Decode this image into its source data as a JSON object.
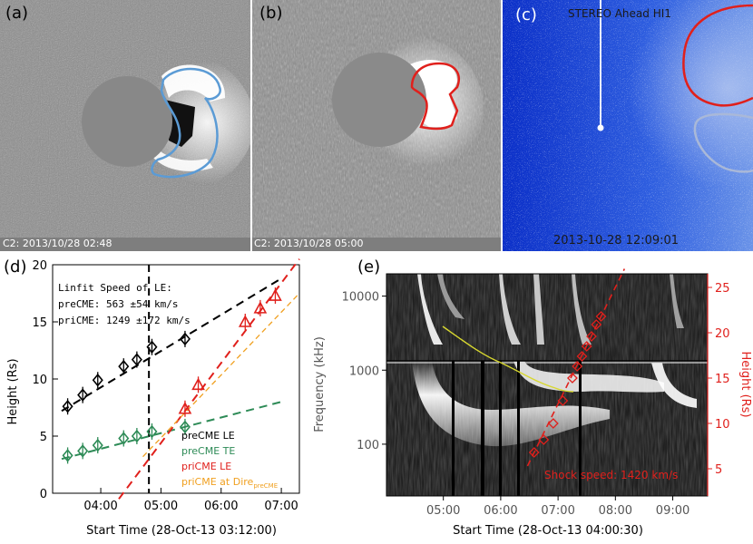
{
  "panel_a": {
    "letter": "(a)",
    "caption": "C2: 2013/10/28 02:48"
  },
  "panel_b": {
    "letter": "(b)",
    "caption": "C2: 2013/10/28 05:00"
  },
  "panel_c": {
    "letter": "(c)",
    "instrument": "STEREO Ahead HI1",
    "timestamp": "2013-10-28 12:09:01"
  },
  "panel_d": {
    "letter": "(d)",
    "annotation_title": "Linfit Speed of LE:",
    "annotation_pre": "preCME:  563 ±54 km/s",
    "annotation_pri": "priCME: 1249 ±172 km/s",
    "legend": {
      "pre_le": "preCME LE",
      "pre_te": "preCME TE",
      "pri_le": "priCME LE",
      "pri_dir": "priCME at Dire",
      "pri_dir_sub": "preCME"
    },
    "colors": {
      "pre_le": "#000000",
      "pre_te": "#2e8b57",
      "pri_le": "#e0201c",
      "pri_dir": "#f0a020"
    }
  },
  "panel_e": {
    "letter": "(e)",
    "shock_label": "Shock speed: 1420 km/s",
    "colors": {
      "height_axis": "#e0201c",
      "shock_track": "#e0201c",
      "burst_trace": "#d8d830"
    }
  },
  "chart_data": [
    {
      "type": "scatter",
      "panel": "d",
      "xlabel": "Start Time (28-Oct-13 03:12:00)",
      "ylabel": "Height (Rs)",
      "x_tick_labels": [
        "04:00",
        "05:00",
        "06:00",
        "07:00"
      ],
      "y_tick_labels": [
        "0",
        "5",
        "10",
        "15",
        "20"
      ],
      "xlim_hours": [
        3.2,
        7.3
      ],
      "ylim": [
        0,
        20
      ],
      "vertical_dashed_line_at": "04:48",
      "series": [
        {
          "name": "preCME LE",
          "points": [
            [
              3.45,
              7.6
            ],
            [
              3.7,
              8.6
            ],
            [
              3.95,
              9.9
            ],
            [
              4.38,
              11.1
            ],
            [
              4.6,
              11.7
            ],
            [
              4.85,
              12.8
            ],
            [
              5.4,
              13.5
            ]
          ],
          "fit": [
            [
              3.35,
              7.2
            ],
            [
              7.0,
              18.8
            ]
          ]
        },
        {
          "name": "preCME TE",
          "points": [
            [
              3.45,
              3.3
            ],
            [
              3.7,
              3.7
            ],
            [
              3.95,
              4.2
            ],
            [
              4.38,
              4.8
            ],
            [
              4.6,
              5.0
            ],
            [
              4.85,
              5.4
            ],
            [
              5.4,
              5.8
            ]
          ],
          "fit": [
            [
              3.35,
              3.0
            ],
            [
              7.0,
              8.0
            ]
          ]
        },
        {
          "name": "priCME LE",
          "points": [
            [
              5.4,
              7.4
            ],
            [
              5.62,
              9.5
            ],
            [
              6.4,
              15.0
            ],
            [
              6.65,
              16.2
            ],
            [
              6.9,
              17.3
            ]
          ],
          "fit": [
            [
              4.3,
              -0.5
            ],
            [
              7.3,
              20.5
            ]
          ]
        },
        {
          "name": "priCME at Dire preCME",
          "fit": [
            [
              4.7,
              3.2
            ],
            [
              7.3,
              17.5
            ]
          ]
        }
      ]
    },
    {
      "type": "heatmap",
      "panel": "e",
      "xlabel": "Start Time (28-Oct-13 04:00:30)",
      "ylabel_left": "Frequency (kHz)",
      "ylabel_right": "Height (Rs)",
      "x_tick_labels": [
        "05:00",
        "06:00",
        "07:00",
        "08:00",
        "09:00"
      ],
      "y_left_tick_labels": [
        "100",
        "1000",
        "10000"
      ],
      "y_right_tick_labels": [
        "5",
        "10",
        "15",
        "20",
        "25"
      ],
      "y_left_scale": "log",
      "shock_heights": {
        "name": "Shock speed: 1420 km/s",
        "points": [
          [
            "06:35",
            6.8
          ],
          [
            "06:45",
            8.2
          ],
          [
            "06:55",
            10.0
          ],
          [
            "07:05",
            12.5
          ],
          [
            "07:15",
            15.0
          ],
          [
            "07:20",
            16.3
          ],
          [
            "07:25",
            17.4
          ],
          [
            "07:30",
            18.5
          ],
          [
            "07:35",
            19.6
          ],
          [
            "07:40",
            20.9
          ],
          [
            "07:45",
            21.8
          ]
        ]
      }
    }
  ]
}
